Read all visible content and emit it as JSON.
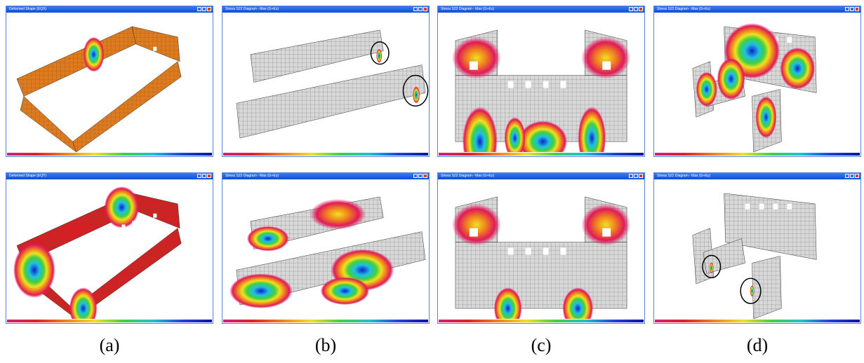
{
  "windows": [
    {
      "title": "Deformed Shape (EQX)"
    },
    {
      "title": "Stress S22 Diagram - Max (G+Ex)"
    },
    {
      "title": "Stress S22 Diagram - Max (G+Ex)"
    },
    {
      "title": "Stress S22 Diagram - Max (G+Ex)"
    },
    {
      "title": "Deformed Shape (EQY)"
    },
    {
      "title": "Stress S22 Diagram - Max (G+Ey)"
    },
    {
      "title": "Stress S22 Diagram - Max (G+Ey)"
    },
    {
      "title": "Stress S22 Diagram - Max (G+Ey)"
    }
  ],
  "captions": [
    "(a)",
    "(b)",
    "(c)",
    "(d)"
  ]
}
